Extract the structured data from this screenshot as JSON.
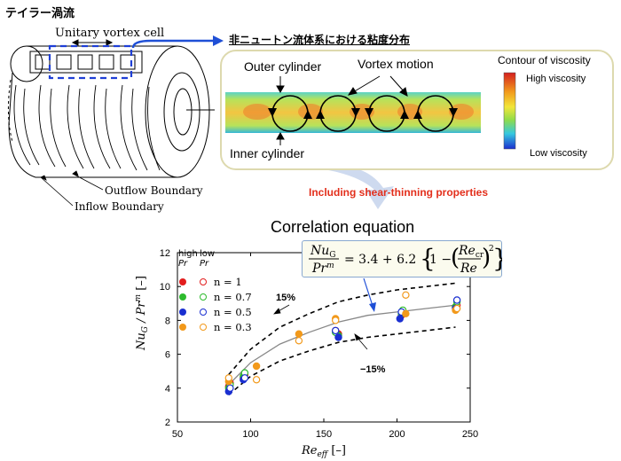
{
  "diagram": {
    "title_jp": "テイラー渦流",
    "unitary_cell_label": "Unitary vortex cell",
    "outflow_label": "Outflow Boundary",
    "inflow_label": "Inflow Boundary",
    "panel_heading": "非ニュートン流体系における粘度分布",
    "outer_cylinder_label": "Outer cylinder",
    "vortex_motion_label": "Vortex motion",
    "contour_label": "Contour of viscosity",
    "high_viscosity_label": "High viscosity",
    "low_viscosity_label": "Low viscosity",
    "inner_cylinder_label": "Inner cylinder",
    "shear_label": "Including shear-thinning properties",
    "correlation_title": "Correlation equation",
    "colors": {
      "arrow_blue": "#1f4fd6",
      "dashed_box": "#1f3fd6",
      "panel_border": "#ddd9ae",
      "shear_text": "#e32f1c"
    }
  },
  "equation": {
    "lhs_num": "Nu",
    "lhs_num_sub": "G",
    "lhs_den": "Pr",
    "lhs_den_sup": "m",
    "rhs": "= 3.4 + 6.2",
    "inner_num": "Re",
    "inner_num_sub": "cr",
    "inner_den": "Re",
    "power": "2"
  },
  "legend": {
    "high": "high",
    "low": "low",
    "pr": "Pr",
    "entries": [
      {
        "label": "n = 1",
        "color": "#e21d1d"
      },
      {
        "label": "n = 0.7",
        "color": "#2dbb2d"
      },
      {
        "label": "n = 0.5",
        "color": "#1a2fd1"
      },
      {
        "label": "n = 0.3",
        "color": "#f2991b"
      }
    ]
  },
  "chart_data": {
    "type": "scatter",
    "xlabel": "Re_eff [–]",
    "ylabel": "Nu_G / Pr^m [–]",
    "xlim": [
      50,
      250
    ],
    "ylim": [
      2,
      12
    ],
    "xticks": [
      50,
      100,
      150,
      200,
      250
    ],
    "yticks": [
      2,
      4,
      6,
      8,
      10,
      12
    ],
    "annotations": [
      "15%",
      "−15%"
    ],
    "series": [
      {
        "name": "n = 1",
        "filled": true,
        "color": "#e21d1d",
        "x": [
          85,
          95,
          160,
          203,
          240
        ],
        "y": [
          4.1,
          4.6,
          7.2,
          8.3,
          8.8
        ]
      },
      {
        "name": "n = 1",
        "filled": false,
        "color": "#e21d1d",
        "x": [
          86,
          96,
          158,
          204,
          241
        ],
        "y": [
          4.3,
          4.8,
          7.4,
          8.4,
          8.9
        ]
      },
      {
        "name": "n = 0.7",
        "filled": true,
        "color": "#2dbb2d",
        "x": [
          85,
          95,
          160,
          203,
          240
        ],
        "y": [
          4.0,
          4.7,
          7.1,
          8.4,
          8.8
        ]
      },
      {
        "name": "n = 0.7",
        "filled": false,
        "color": "#2dbb2d",
        "x": [
          86,
          96,
          158,
          204,
          241
        ],
        "y": [
          4.2,
          4.9,
          7.3,
          8.6,
          9.1
        ]
      },
      {
        "name": "n = 0.5",
        "filled": true,
        "color": "#1a2fd1",
        "x": [
          85,
          95,
          160,
          202,
          240
        ],
        "y": [
          3.8,
          4.5,
          7.0,
          8.1,
          8.7
        ]
      },
      {
        "name": "n = 0.5",
        "filled": false,
        "color": "#1a2fd1",
        "x": [
          86,
          96,
          158,
          203,
          241
        ],
        "y": [
          4.0,
          4.6,
          7.4,
          8.5,
          9.2
        ]
      },
      {
        "name": "n = 0.3",
        "filled": true,
        "color": "#f2991b",
        "x": [
          85,
          104,
          133,
          158,
          206,
          240
        ],
        "y": [
          4.4,
          5.3,
          7.2,
          8.1,
          8.4,
          8.6
        ]
      },
      {
        "name": "n = 0.3",
        "filled": false,
        "color": "#f2991b",
        "x": [
          85,
          104,
          133,
          158,
          206,
          241
        ],
        "y": [
          4.6,
          4.5,
          6.8,
          8.0,
          9.5,
          8.7
        ]
      }
    ],
    "curve": {
      "label": "correlation",
      "x": [
        85,
        100,
        120,
        140,
        160,
        180,
        200,
        220,
        240
      ],
      "y": [
        4.2,
        5.5,
        6.6,
        7.3,
        7.9,
        8.3,
        8.5,
        8.7,
        8.9
      ]
    },
    "upper_band": {
      "label": "15%",
      "x": [
        85,
        100,
        120,
        140,
        160,
        180,
        200,
        220,
        240
      ],
      "y": [
        4.8,
        6.3,
        7.6,
        8.4,
        9.1,
        9.5,
        9.8,
        10.0,
        10.2
      ]
    },
    "lower_band": {
      "label": "−15%",
      "x": [
        85,
        100,
        120,
        140,
        160,
        180,
        200,
        220,
        240
      ],
      "y": [
        3.6,
        4.7,
        5.6,
        6.2,
        6.7,
        7.0,
        7.2,
        7.4,
        7.6
      ]
    }
  }
}
